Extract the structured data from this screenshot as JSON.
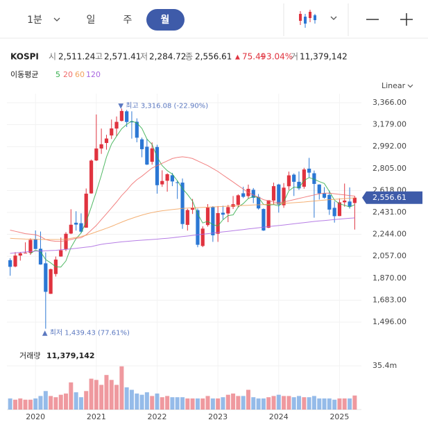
{
  "toolbar": {
    "tabs": [
      "1분",
      "일",
      "주",
      "월"
    ],
    "selected_index": 3
  },
  "header": {
    "symbol": "KOSPI",
    "open_label": "시",
    "open": "2,511.24",
    "high_label": "고",
    "high": "2,571.41",
    "low_label": "저",
    "low": "2,284.72",
    "close_label": "종",
    "close": "2,556.61",
    "change_arrow": "▲",
    "change": "75.49",
    "change_pct": "+3.04%",
    "volume_label": "거",
    "volume": "11,379,142"
  },
  "chart_data": {
    "type": "candlestick",
    "x": [
      2019.583,
      2019.667,
      2019.75,
      2019.833,
      2019.917,
      2020,
      2020.083,
      2020.167,
      2020.25,
      2020.333,
      2020.417,
      2020.5,
      2020.583,
      2020.667,
      2020.75,
      2020.833,
      2020.917,
      2021,
      2021.083,
      2021.167,
      2021.25,
      2021.333,
      2021.417,
      2021.5,
      2021.583,
      2021.667,
      2021.75,
      2021.833,
      2021.917,
      2022,
      2022.083,
      2022.167,
      2022.25,
      2022.333,
      2022.417,
      2022.5,
      2022.583,
      2022.667,
      2022.75,
      2022.833,
      2022.917,
      2023,
      2023.083,
      2023.167,
      2023.25,
      2023.333,
      2023.417,
      2023.5,
      2023.583,
      2023.667,
      2023.75,
      2023.833,
      2023.917,
      2024,
      2024.083,
      2024.167,
      2024.25,
      2024.333,
      2024.417,
      2024.5,
      2024.583,
      2024.667,
      2024.75,
      2024.833,
      2024.917,
      2025,
      2025.083,
      2025.167,
      2025.25
    ],
    "open": [
      2024,
      1970,
      2063,
      2083,
      2086,
      2201,
      2121,
      1997,
      1737,
      1906,
      2055,
      2118,
      2251,
      2343,
      2339,
      2301,
      2593,
      2874,
      2976,
      3023,
      3087,
      3146,
      3211,
      3293,
      3208,
      3204,
      3054,
      2991,
      2863,
      2989,
      2670,
      2701,
      2748,
      2688,
      2685,
      2325,
      2454,
      2450,
      2145,
      2323,
      2476,
      2249,
      2428,
      2422,
      2478,
      2496,
      2594,
      2570,
      2624,
      2563,
      2460,
      2300,
      2532,
      2669,
      2492,
      2654,
      2753,
      2692,
      2650,
      2804,
      2765,
      2669,
      2593,
      2580,
      2470,
      2400,
      2517,
      2524,
      2511.24
    ],
    "high": [
      2040,
      2092,
      2094,
      2176,
      2210,
      2277,
      2268,
      2090,
      1952,
      2055,
      2217,
      2263,
      2458,
      2441,
      2423,
      2635,
      2882,
      3266,
      3146,
      3093,
      3223,
      3249,
      3316.08,
      3305,
      3293,
      3233,
      3069,
      3057,
      3028,
      3008,
      2790,
      2765,
      2768,
      2703,
      2720,
      2462,
      2546,
      2464,
      2312,
      2502,
      2484,
      2485,
      2488,
      2495,
      2571,
      2586,
      2650,
      2668,
      2639,
      2588,
      2465,
      2534,
      2685,
      2675,
      2681,
      2779,
      2764,
      2780,
      2811,
      2896,
      2788,
      2671,
      2647,
      2617,
      2525,
      2551,
      2677,
      2644,
      2571.41
    ],
    "low": [
      1891,
      1963,
      2020,
      2082,
      2069,
      2119,
      1985,
      1439.43,
      1736,
      1884,
      2053,
      2101,
      2246,
      2276,
      2254,
      2300,
      2591,
      2869,
      2930,
      2966,
      3057,
      3082,
      3207,
      3159,
      3060,
      3029,
      2901,
      2835,
      2838,
      2591,
      2649,
      2608,
      2655,
      2546,
      2291,
      2276,
      2418,
      2134,
      2135,
      2310,
      2180,
      2180,
      2372,
      2348,
      2460,
      2472,
      2553,
      2549,
      2510,
      2455,
      2273,
      2297,
      2495,
      2429,
      2470,
      2622,
      2571,
      2622,
      2633,
      2728,
      2386,
      2541,
      2548,
      2410,
      2344,
      2400,
      2480,
      2463,
      2284.72
    ],
    "close": [
      1967,
      2063,
      2083,
      2087,
      2197,
      2119,
      1987,
      1754,
      1947,
      2029,
      2108,
      2249,
      2326,
      2327,
      2267,
      2591,
      2873,
      2976,
      3012,
      3061,
      3147,
      3203,
      3296,
      3202,
      3199,
      3068,
      2970,
      2839,
      2977,
      2663,
      2699,
      2757,
      2695,
      2685,
      2332,
      2451,
      2472,
      2155,
      2293,
      2472,
      2236,
      2425,
      2412,
      2476,
      2501,
      2577,
      2564,
      2632,
      2556,
      2465,
      2277,
      2535,
      2655,
      2497,
      2642,
      2747,
      2692,
      2636,
      2797,
      2770,
      2674,
      2593,
      2556,
      2455,
      2399,
      2517,
      2532,
      2481,
      2556.61
    ],
    "up_color": "#e0333f",
    "down_color": "#2b77d4",
    "xlim": [
      2019.53,
      2025.36
    ],
    "xticks": [
      2020,
      2021,
      2022,
      2023,
      2024,
      2025
    ],
    "ylim": [
      1342,
      3443
    ],
    "yticks": [
      {
        "value": 3366,
        "label": "3,366.00"
      },
      {
        "value": 3179,
        "label": "3,179.00"
      },
      {
        "value": 2992,
        "label": "2,992.00"
      },
      {
        "value": 2805,
        "label": "2,805.00"
      },
      {
        "value": 2618,
        "label": "2,618.00"
      },
      {
        "value": 2431,
        "label": "2,431.00"
      },
      {
        "value": 2244,
        "label": "2,244.00"
      },
      {
        "value": 2057,
        "label": "2,057.00"
      },
      {
        "value": 1870,
        "label": "1,870.00"
      },
      {
        "value": 1683,
        "label": "1,683.00"
      },
      {
        "value": 1496,
        "label": "1,496.00"
      }
    ],
    "scale_label": "Linear",
    "ma_label": "이동평균",
    "series": [
      {
        "name": "5",
        "color": "#33ad4a",
        "values": [
          null,
          null,
          null,
          null,
          2079,
          2110,
          2095,
          2029,
          2001,
          1967,
          1965,
          2017,
          2132,
          2208,
          2255,
          2352,
          2477,
          2607,
          2748,
          2903,
          3014,
          3080,
          3144,
          3182,
          3209,
          3194,
          3147,
          3056,
          3011,
          2903,
          2830,
          2787,
          2758,
          2700,
          2634,
          2584,
          2527,
          2419,
          2341,
          2355,
          2326,
          2316,
          2368,
          2404,
          2410,
          2478,
          2506,
          2550,
          2566,
          2559,
          2499,
          2493,
          2498,
          2486,
          2521,
          2615,
          2647,
          2643,
          2703,
          2728,
          2714,
          2694,
          2678,
          2610,
          2535,
          2504,
          2492,
          2477,
          2497
        ]
      },
      {
        "name": "20",
        "color": "#f06a6a",
        "values": [
          2280,
          2270,
          2260,
          2250,
          2245,
          2240,
          2225,
          2200,
          2190,
          2185,
          2185,
          2190,
          2200,
          2210,
          2215,
          2240,
          2280,
          2320,
          2370,
          2420,
          2470,
          2520,
          2575,
          2620,
          2670,
          2710,
          2740,
          2775,
          2810,
          2830,
          2850,
          2870,
          2890,
          2900,
          2905,
          2900,
          2890,
          2870,
          2850,
          2830,
          2805,
          2780,
          2750,
          2720,
          2690,
          2660,
          2630,
          2600,
          2580,
          2560,
          2540,
          2530,
          2520,
          2515,
          2520,
          2530,
          2540,
          2550,
          2560,
          2570,
          2580,
          2590,
          2595,
          2595,
          2590,
          2585,
          2580,
          2575,
          2570
        ]
      },
      {
        "name": "60",
        "color": "#f2a25c",
        "values": [
          2210,
          2208,
          2206,
          2204,
          2203,
          2202,
          2201,
          2200,
          2200,
          2200,
          2201,
          2203,
          2210,
          2218,
          2226,
          2236,
          2250,
          2265,
          2280,
          2296,
          2312,
          2330,
          2348,
          2365,
          2380,
          2395,
          2408,
          2420,
          2430,
          2438,
          2445,
          2450,
          2455,
          2460,
          2465,
          2468,
          2470,
          2472,
          2474,
          2476,
          2478,
          2480,
          2482,
          2484,
          2486,
          2488,
          2490,
          2492,
          2494,
          2496,
          2498,
          2500,
          2502,
          2505,
          2508,
          2511,
          2514,
          2517,
          2520,
          2524,
          2528,
          2532,
          2536,
          2540,
          2543,
          2546,
          2549,
          2552,
          2555
        ]
      },
      {
        "name": "120",
        "color": "#a966e0",
        "values": [
          2082,
          2086,
          2090,
          2094,
          2097,
          2100,
          2102,
          2104,
          2106,
          2108,
          2112,
          2116,
          2120,
          2125,
          2130,
          2135,
          2140,
          2150,
          2159,
          2165,
          2170,
          2175,
          2180,
          2184,
          2188,
          2191,
          2194,
          2197,
          2200,
          2203,
          2207,
          2211,
          2215,
          2220,
          2225,
          2230,
          2235,
          2240,
          2245,
          2250,
          2255,
          2260,
          2265,
          2270,
          2275,
          2280,
          2285,
          2290,
          2295,
          2300,
          2305,
          2310,
          2315,
          2319,
          2324,
          2329,
          2334,
          2339,
          2344,
          2349,
          2354,
          2358,
          2362,
          2366,
          2370,
          2374,
          2378,
          2381,
          2384
        ]
      }
    ],
    "annotations": [
      {
        "text": "▼ 최고 3,316.08 (-22.90%)",
        "x": 2021.417,
        "y": 3316.08,
        "position": "above"
      },
      {
        "text": "▲ 최저 1,439.43 (77.61%)",
        "x": 2020.167,
        "y": 1439.43,
        "position": "below"
      }
    ],
    "volume": {
      "title": "거래량",
      "values": [
        9,
        8,
        9,
        8,
        8,
        9,
        11,
        15,
        11,
        10,
        12,
        13,
        22,
        14,
        10,
        15,
        25,
        24,
        20,
        28,
        24,
        20,
        35,
        18,
        16,
        13,
        12,
        14,
        11,
        13,
        10,
        11,
        10,
        10,
        10,
        9,
        9,
        9,
        9,
        11,
        9,
        9,
        10,
        12,
        13,
        11,
        11,
        16,
        10,
        9,
        9,
        10,
        11,
        12,
        11,
        11,
        10,
        11,
        10,
        10,
        11,
        9,
        9,
        9,
        8,
        9,
        9,
        9,
        11.379142
      ],
      "ylim": [
        0,
        50.6
      ],
      "yticks": [
        {
          "value": 35.4,
          "label": "35.4m"
        }
      ]
    }
  }
}
